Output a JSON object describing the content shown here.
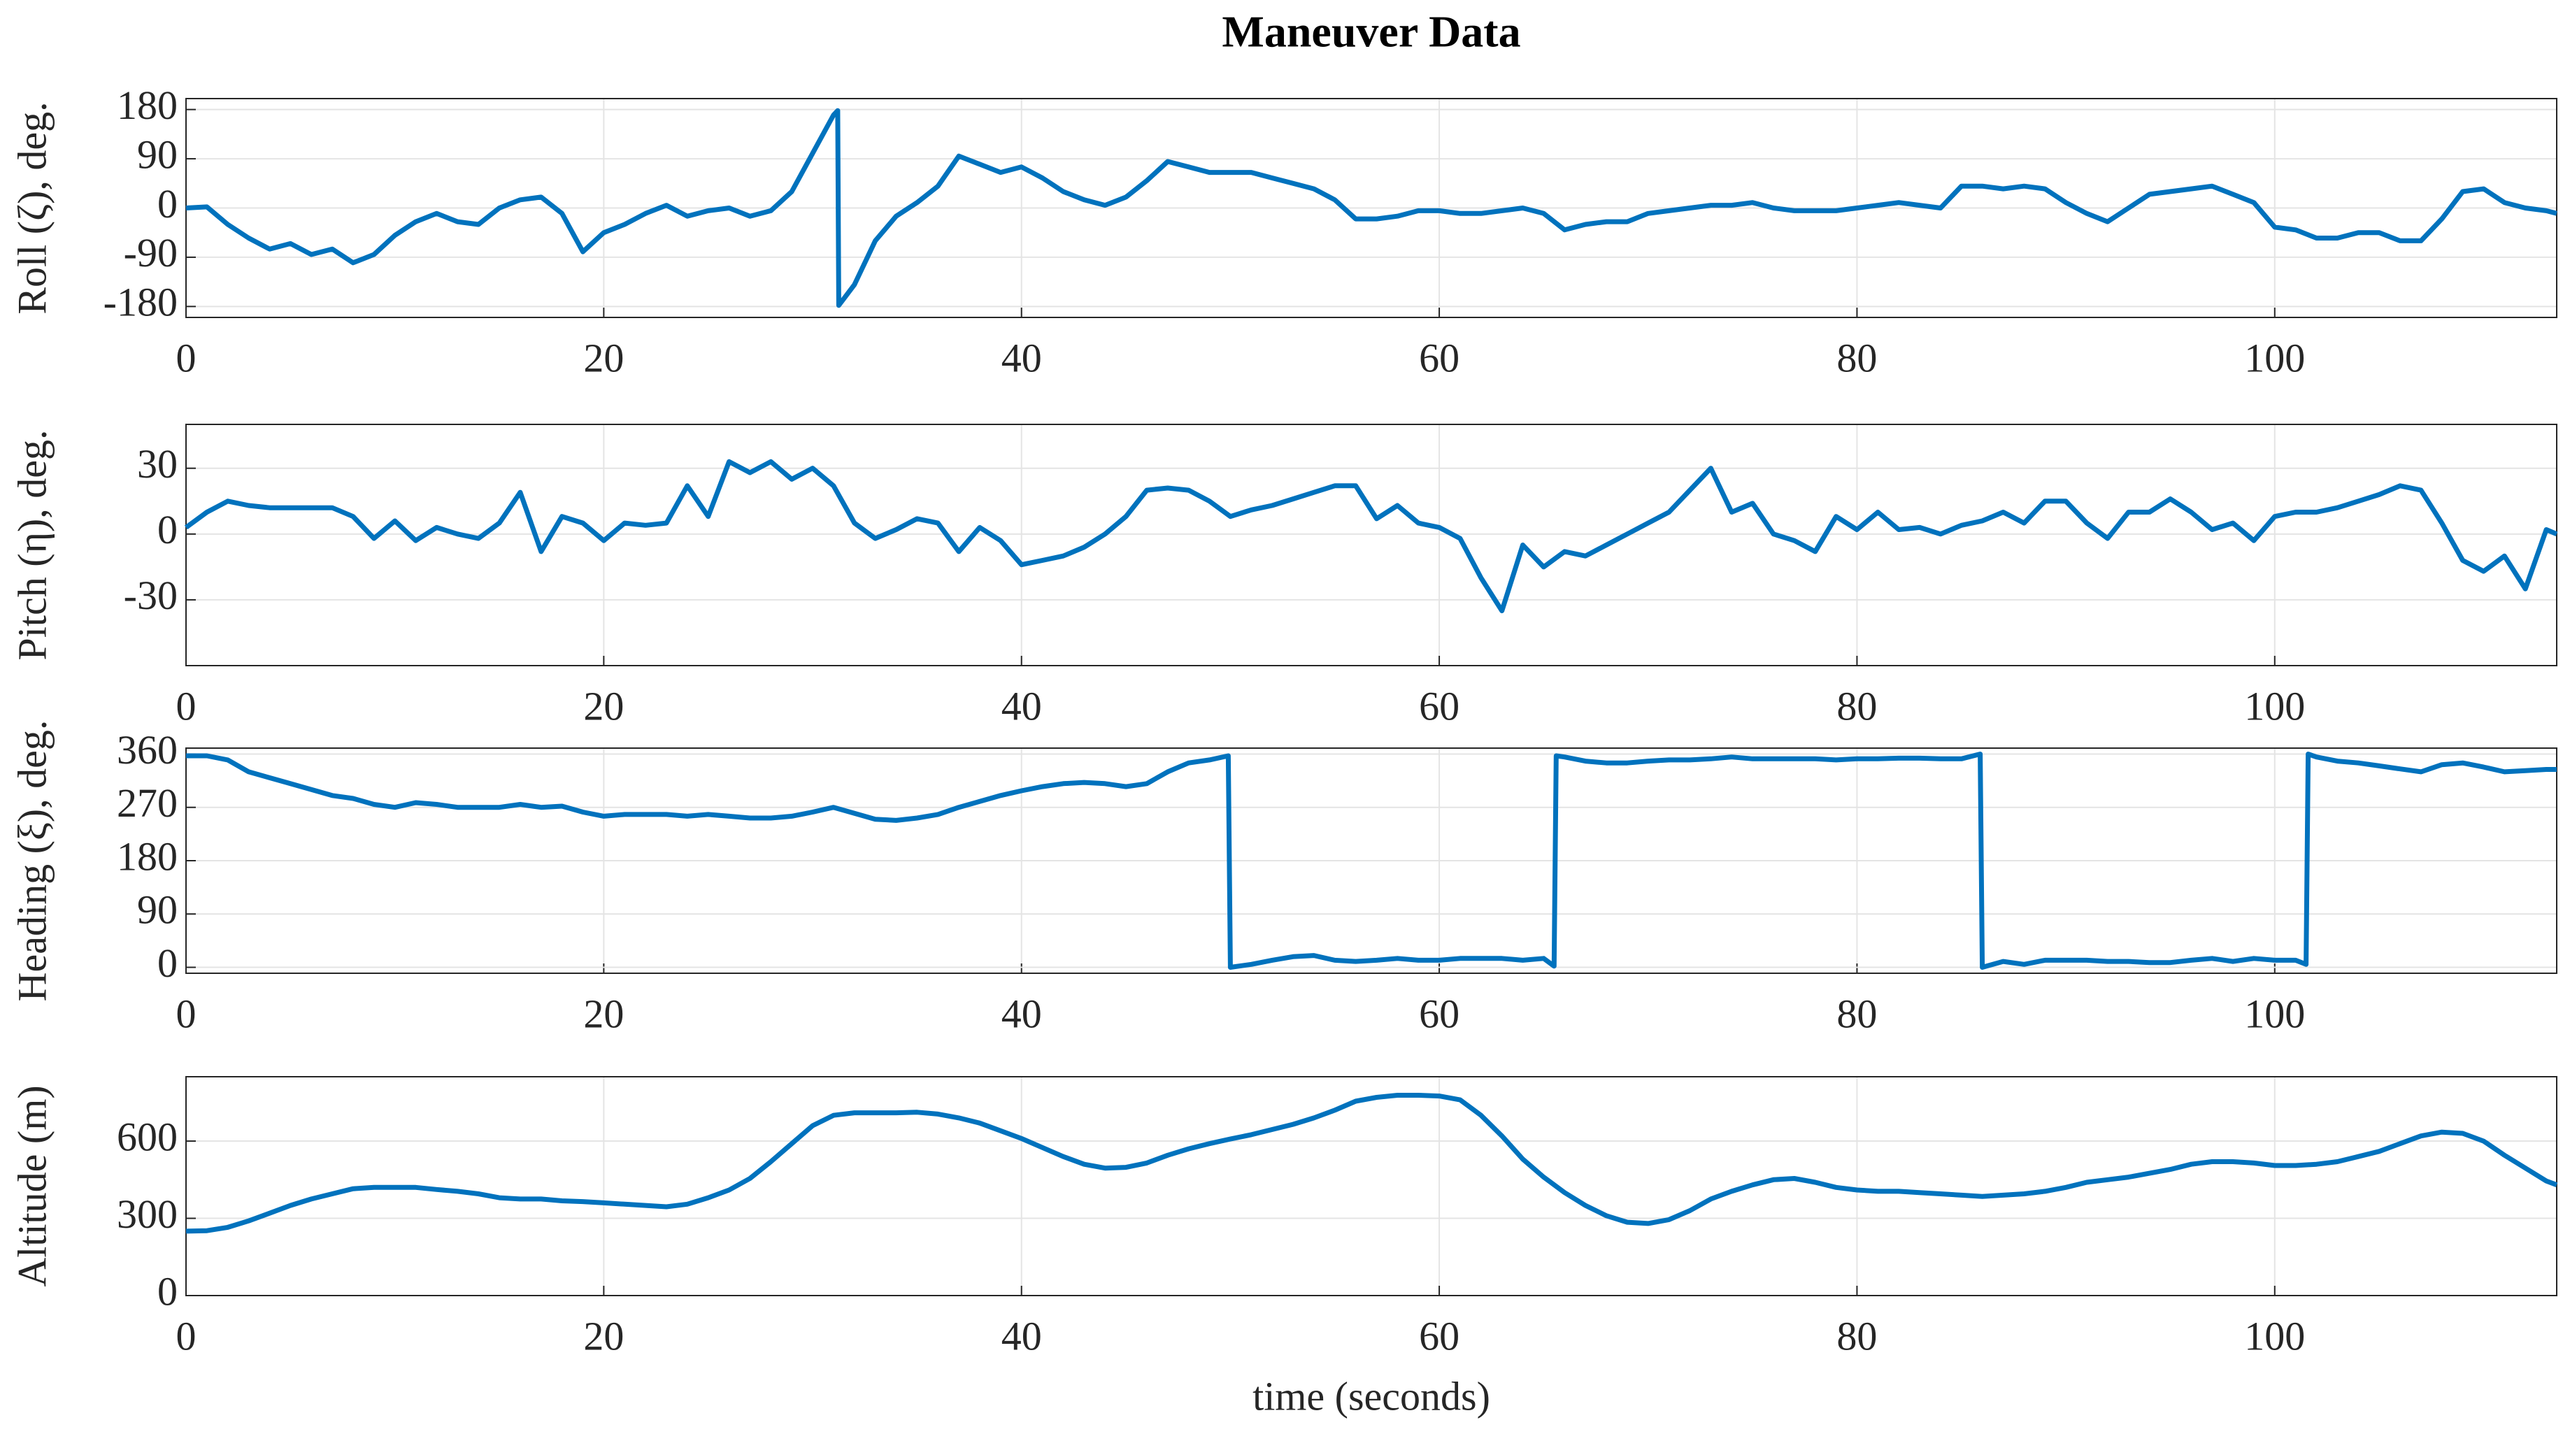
{
  "chart_data": [
    {
      "type": "line",
      "title": "Maneuver Data",
      "ylabel": "Roll (ζ), deg.",
      "color": "#0072bd",
      "grid": true,
      "xlim": [
        0,
        113.5
      ],
      "xticks": [
        0,
        20,
        40,
        60,
        80,
        100
      ],
      "ylim": [
        -200,
        200
      ],
      "yticks": [
        -180,
        -90,
        0,
        90,
        180
      ],
      "x": [
        0,
        1,
        2,
        3,
        4,
        5,
        6,
        7,
        8,
        9,
        10,
        11,
        12,
        13,
        14,
        15,
        16,
        17,
        18,
        19,
        20,
        21,
        22,
        23,
        24,
        25,
        26,
        27,
        28,
        29,
        30,
        31,
        31.2,
        31.25,
        32,
        33,
        34,
        35,
        36,
        37,
        38,
        39,
        40,
        41,
        42,
        43,
        44,
        45,
        46,
        47,
        48,
        49,
        50,
        51,
        52,
        53,
        54,
        55,
        56,
        57,
        58,
        59,
        60,
        61,
        62,
        63,
        64,
        65,
        66,
        67,
        68,
        69,
        70,
        71,
        72,
        73,
        74,
        75,
        76,
        77,
        78,
        79,
        80,
        81,
        82,
        83,
        84,
        85,
        86,
        87,
        88,
        89,
        90,
        91,
        92,
        93,
        94,
        95,
        96,
        97,
        98,
        99,
        100,
        101,
        102,
        103,
        104,
        105,
        106,
        107,
        108,
        109,
        110,
        111,
        112,
        113,
        113.5
      ],
      "values": [
        0,
        2,
        -30,
        -55,
        -75,
        -65,
        -85,
        -75,
        -100,
        -85,
        -50,
        -25,
        -10,
        -25,
        -30,
        0,
        15,
        20,
        -10,
        -80,
        -45,
        -30,
        -10,
        5,
        -15,
        -5,
        0,
        -15,
        -5,
        30,
        100,
        170,
        178,
        -178,
        -140,
        -60,
        -15,
        10,
        40,
        95,
        80,
        65,
        75,
        55,
        30,
        15,
        5,
        20,
        50,
        85,
        75,
        65,
        65,
        65,
        55,
        45,
        35,
        15,
        -20,
        -20,
        -15,
        -5,
        -5,
        -10,
        -10,
        -5,
        0,
        -10,
        -40,
        -30,
        -25,
        -25,
        -10,
        -5,
        0,
        5,
        5,
        10,
        0,
        -5,
        -5,
        -5,
        0,
        5,
        10,
        5,
        0,
        40,
        40,
        35,
        40,
        35,
        10,
        -10,
        -25,
        0,
        25,
        30,
        35,
        40,
        25,
        10,
        -35,
        -40,
        -55,
        -55,
        -45,
        -45,
        -60,
        -60,
        -20,
        30,
        35,
        10,
        0,
        -5,
        -10
      ]
    },
    {
      "type": "line",
      "ylabel": "Pitch (η), deg.",
      "color": "#0072bd",
      "grid": true,
      "xlim": [
        0,
        113.5
      ],
      "xticks": [
        0,
        20,
        40,
        60,
        80,
        100
      ],
      "ylim": [
        -60,
        50
      ],
      "yticks": [
        -30,
        0,
        30
      ],
      "x": [
        0,
        1,
        2,
        3,
        4,
        5,
        6,
        7,
        8,
        9,
        10,
        11,
        12,
        13,
        14,
        15,
        16,
        17,
        18,
        19,
        20,
        21,
        22,
        23,
        24,
        25,
        26,
        27,
        28,
        29,
        30,
        31,
        32,
        33,
        34,
        35,
        36,
        37,
        38,
        39,
        40,
        41,
        42,
        43,
        44,
        45,
        46,
        47,
        48,
        49,
        50,
        51,
        52,
        53,
        54,
        55,
        56,
        57,
        58,
        59,
        60,
        61,
        62,
        63,
        64,
        65,
        66,
        67,
        68,
        69,
        70,
        71,
        72,
        73,
        74,
        75,
        76,
        77,
        78,
        79,
        80,
        81,
        82,
        83,
        84,
        85,
        86,
        87,
        88,
        89,
        90,
        91,
        92,
        93,
        94,
        95,
        96,
        97,
        98,
        99,
        100,
        101,
        102,
        103,
        104,
        105,
        106,
        107,
        108,
        109,
        110,
        111,
        112,
        113,
        113.5
      ],
      "values": [
        3,
        10,
        15,
        13,
        12,
        12,
        12,
        12,
        8,
        -2,
        6,
        -3,
        3,
        0,
        -2,
        5,
        19,
        -8,
        8,
        5,
        -3,
        5,
        4,
        5,
        22,
        8,
        33,
        28,
        33,
        25,
        30,
        22,
        5,
        -2,
        2,
        7,
        5,
        -8,
        3,
        -3,
        -14,
        -12,
        -10,
        -6,
        0,
        8,
        20,
        21,
        20,
        15,
        8,
        11,
        13,
        16,
        19,
        22,
        22,
        7,
        13,
        5,
        3,
        -2,
        -20,
        -35,
        -5,
        -15,
        -8,
        -10,
        -5,
        0,
        5,
        10,
        20,
        30,
        10,
        14,
        0,
        -3,
        -8,
        8,
        2,
        10,
        2,
        3,
        0,
        4,
        6,
        10,
        5,
        15,
        15,
        5,
        -2,
        10,
        10,
        16,
        10,
        2,
        5,
        -3,
        8,
        10,
        10,
        12,
        15,
        18,
        22,
        20,
        5,
        -12,
        -17,
        -10,
        -25,
        2,
        0
      ]
    },
    {
      "type": "line",
      "ylabel": "Heading (ξ), deg.",
      "color": "#0072bd",
      "grid": true,
      "xlim": [
        0,
        113.5
      ],
      "xticks": [
        0,
        20,
        40,
        60,
        80,
        100
      ],
      "ylim": [
        -10,
        370
      ],
      "yticks": [
        0,
        90,
        180,
        270,
        360
      ],
      "x": [
        0,
        1,
        2,
        3,
        4,
        5,
        6,
        7,
        8,
        9,
        10,
        11,
        12,
        13,
        14,
        15,
        16,
        17,
        18,
        19,
        20,
        21,
        22,
        23,
        24,
        25,
        26,
        27,
        28,
        29,
        30,
        31,
        32,
        33,
        34,
        35,
        36,
        37,
        38,
        39,
        40,
        41,
        42,
        43,
        44,
        45,
        46,
        47,
        48,
        49,
        49.9,
        50,
        51,
        52,
        53,
        54,
        55,
        56,
        57,
        58,
        59,
        60,
        61,
        62,
        63,
        64,
        65,
        65.5,
        65.6,
        66,
        67,
        68,
        69,
        70,
        71,
        72,
        73,
        74,
        75,
        76,
        77,
        78,
        79,
        80,
        81,
        82,
        83,
        84,
        85,
        85.9,
        86,
        87,
        88,
        89,
        90,
        91,
        92,
        93,
        94,
        95,
        96,
        97,
        98,
        99,
        100,
        101,
        101.5,
        101.6,
        102,
        103,
        104,
        105,
        106,
        107,
        108,
        109,
        110,
        111,
        112,
        113,
        113.5
      ],
      "values": [
        357,
        357,
        350,
        330,
        320,
        310,
        300,
        290,
        285,
        275,
        270,
        278,
        275,
        270,
        270,
        270,
        275,
        270,
        272,
        262,
        255,
        258,
        258,
        258,
        255,
        258,
        255,
        252,
        252,
        255,
        262,
        270,
        260,
        250,
        248,
        252,
        258,
        270,
        280,
        290,
        298,
        305,
        310,
        312,
        310,
        305,
        310,
        330,
        345,
        350,
        357,
        0,
        5,
        12,
        18,
        20,
        12,
        10,
        12,
        15,
        12,
        12,
        15,
        15,
        15,
        12,
        15,
        2,
        357,
        355,
        348,
        345,
        345,
        348,
        350,
        350,
        352,
        355,
        352,
        352,
        352,
        352,
        350,
        352,
        352,
        353,
        353,
        352,
        352,
        360,
        0,
        10,
        5,
        12,
        12,
        12,
        10,
        10,
        8,
        8,
        12,
        15,
        10,
        15,
        12,
        12,
        5,
        360,
        355,
        348,
        345,
        340,
        335,
        330,
        342,
        345,
        338,
        330,
        332,
        334,
        334
      ]
    },
    {
      "type": "line",
      "ylabel": "Altitude (m)",
      "xlabel": "time (seconds)",
      "color": "#0072bd",
      "grid": true,
      "xlim": [
        0,
        113.5
      ],
      "xticks": [
        0,
        20,
        40,
        60,
        80,
        100
      ],
      "ylim": [
        0,
        850
      ],
      "yticks": [
        0,
        300,
        600
      ],
      "x": [
        0,
        1,
        2,
        3,
        4,
        5,
        6,
        7,
        8,
        9,
        10,
        11,
        12,
        13,
        14,
        15,
        16,
        17,
        18,
        19,
        20,
        21,
        22,
        23,
        24,
        25,
        26,
        27,
        28,
        29,
        30,
        31,
        32,
        33,
        34,
        35,
        36,
        37,
        38,
        39,
        40,
        41,
        42,
        43,
        44,
        45,
        46,
        47,
        48,
        49,
        50,
        51,
        52,
        53,
        54,
        55,
        56,
        57,
        58,
        59,
        60,
        61,
        62,
        63,
        64,
        65,
        66,
        67,
        68,
        69,
        70,
        71,
        72,
        73,
        74,
        75,
        76,
        77,
        78,
        79,
        80,
        81,
        82,
        83,
        84,
        85,
        86,
        87,
        88,
        89,
        90,
        91,
        92,
        93,
        94,
        95,
        96,
        97,
        98,
        99,
        100,
        101,
        102,
        103,
        104,
        105,
        106,
        107,
        108,
        109,
        110,
        111,
        112,
        113,
        113.5
      ],
      "values": [
        250,
        252,
        265,
        290,
        320,
        350,
        375,
        395,
        415,
        420,
        420,
        420,
        412,
        405,
        395,
        380,
        375,
        375,
        368,
        365,
        360,
        355,
        350,
        345,
        355,
        380,
        410,
        455,
        520,
        590,
        660,
        700,
        710,
        710,
        710,
        712,
        705,
        690,
        670,
        640,
        610,
        575,
        540,
        510,
        495,
        498,
        515,
        545,
        570,
        590,
        608,
        625,
        645,
        665,
        690,
        720,
        755,
        770,
        778,
        778,
        775,
        760,
        700,
        620,
        530,
        460,
        400,
        350,
        310,
        285,
        280,
        295,
        330,
        375,
        405,
        430,
        450,
        455,
        440,
        420,
        410,
        405,
        405,
        400,
        395,
        390,
        385,
        390,
        395,
        405,
        420,
        440,
        450,
        460,
        475,
        490,
        510,
        520,
        520,
        515,
        505,
        505,
        510,
        520,
        540,
        560,
        590,
        620,
        635,
        630,
        600,
        545,
        495,
        445,
        430
      ]
    }
  ]
}
